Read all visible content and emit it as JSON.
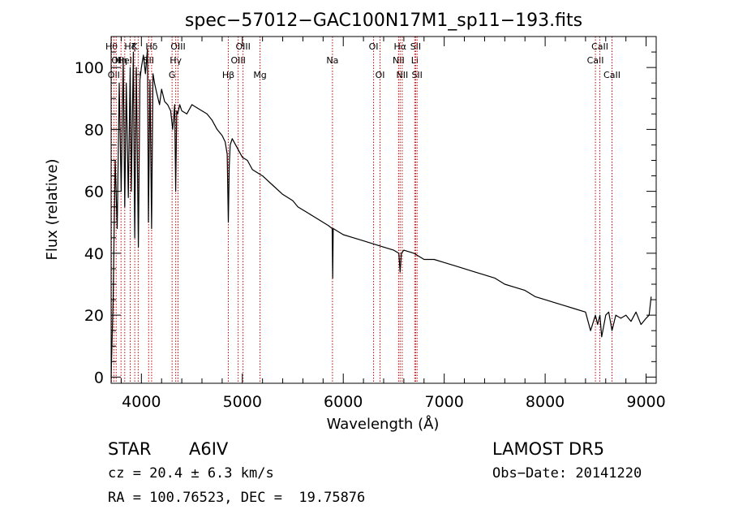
{
  "chart_data": {
    "type": "line",
    "title": "spec−57012−GAC100N17M1_sp11−193.fits",
    "xlabel": "Wavelength (Å)",
    "ylabel": "Flux (relative)",
    "xlim": [
      3700,
      9100
    ],
    "ylim": [
      -2,
      110
    ],
    "xticks": [
      4000,
      5000,
      6000,
      7000,
      8000,
      9000
    ],
    "yticks": [
      0,
      20,
      40,
      60,
      80,
      100
    ],
    "grid": false,
    "series": [
      {
        "x": [
          3700,
          3720,
          3740,
          3760,
          3780,
          3800,
          3820,
          3835,
          3850,
          3870,
          3889,
          3900,
          3920,
          3934,
          3950,
          3970,
          3985,
          4000,
          4020,
          4040,
          4060,
          4070,
          4085,
          4101,
          4115,
          4130,
          4150,
          4180,
          4200,
          4230,
          4260,
          4290,
          4310,
          4330,
          4340,
          4350,
          4360,
          4380,
          4400,
          4450,
          4500,
          4550,
          4600,
          4650,
          4700,
          4750,
          4800,
          4830,
          4850,
          4861,
          4870,
          4880,
          4900,
          4950,
          5000,
          5050,
          5100,
          5150,
          5200,
          5300,
          5400,
          5500,
          5550,
          5600,
          5700,
          5800,
          5850,
          5890,
          5895,
          5900,
          5950,
          6000,
          6100,
          6200,
          6300,
          6400,
          6500,
          6550,
          6563,
          6575,
          6600,
          6700,
          6800,
          6900,
          7000,
          7100,
          7200,
          7300,
          7400,
          7500,
          7600,
          7700,
          7800,
          7900,
          8000,
          8100,
          8200,
          8300,
          8400,
          8450,
          8498,
          8520,
          8542,
          8560,
          8600,
          8630,
          8662,
          8700,
          8750,
          8800,
          8850,
          8900,
          8950,
          9000,
          9030,
          9050
        ],
        "y": [
          0,
          25,
          70,
          48,
          95,
          60,
          103,
          55,
          95,
          58,
          100,
          60,
          105,
          45,
          100,
          42,
          96,
          100,
          104,
          98,
          106,
          50,
          96,
          48,
          98,
          95,
          92,
          88,
          93,
          89,
          88,
          86,
          80,
          88,
          60,
          86,
          85,
          88,
          86,
          85,
          88,
          87,
          86,
          85,
          83,
          80,
          78,
          76,
          72,
          50,
          68,
          75,
          77,
          74,
          71,
          70,
          67,
          66,
          65,
          62,
          59,
          57,
          55,
          54,
          52,
          50,
          49,
          48,
          32,
          48,
          47,
          46,
          45,
          44,
          43,
          42,
          41,
          40,
          34,
          40,
          41,
          40,
          38,
          38,
          37,
          36,
          35,
          34,
          33,
          32,
          30,
          29,
          28,
          26,
          25,
          24,
          23,
          22,
          21,
          15,
          20,
          17,
          20,
          13,
          20,
          21,
          15,
          20,
          19,
          20,
          18,
          21,
          17,
          19,
          20,
          26
        ]
      }
    ],
    "lines": [
      {
        "wl": 3704,
        "label": "Hθ",
        "row": 0
      },
      {
        "wl": 3727,
        "label": "OII",
        "row": 2
      },
      {
        "wl": 3750,
        "label": "OI",
        "row": 1
      },
      {
        "wl": 3798,
        "label": "Hη",
        "row": 1
      },
      {
        "wl": 3835,
        "label": "HeI",
        "row": 1
      },
      {
        "wl": 3889,
        "label": "Hζ",
        "row": 0
      },
      {
        "wl": 3934,
        "label": "K",
        "row": 0
      },
      {
        "wl": 3968,
        "label": "H",
        "row": 2
      },
      {
        "wl": 4072,
        "label": "SII",
        "row": 1
      },
      {
        "wl": 4101,
        "label": "Hδ",
        "row": 0
      },
      {
        "wl": 4304,
        "label": "G",
        "row": 2
      },
      {
        "wl": 4340,
        "label": "Hγ",
        "row": 1
      },
      {
        "wl": 4363,
        "label": "OIII",
        "row": 0
      },
      {
        "wl": 4861,
        "label": "Hβ",
        "row": 2
      },
      {
        "wl": 4959,
        "label": "OIII",
        "row": 1
      },
      {
        "wl": 5007,
        "label": "OIII",
        "row": 0
      },
      {
        "wl": 5175,
        "label": "Mg",
        "row": 2
      },
      {
        "wl": 5893,
        "label": "Na",
        "row": 1
      },
      {
        "wl": 6300,
        "label": "OI",
        "row": 0
      },
      {
        "wl": 6364,
        "label": "OI",
        "row": 2
      },
      {
        "wl": 6548,
        "label": "NII",
        "row": 1
      },
      {
        "wl": 6563,
        "label": "Hα",
        "row": 0
      },
      {
        "wl": 6584,
        "label": "NII",
        "row": 2
      },
      {
        "wl": 6708,
        "label": "Li",
        "row": 1
      },
      {
        "wl": 6717,
        "label": "SII",
        "row": 0
      },
      {
        "wl": 6731,
        "label": "SII",
        "row": 2
      },
      {
        "wl": 8498,
        "label": "CaII",
        "row": 1
      },
      {
        "wl": 8542,
        "label": "CaII",
        "row": 0
      },
      {
        "wl": 8662,
        "label": "CaII",
        "row": 2
      }
    ],
    "line_color": "#cc0000"
  },
  "info": {
    "object_class": "STAR",
    "subclass": "A6IV",
    "survey": "LAMOST DR5",
    "cz": "cz = 20.4 ± 6.3 km/s",
    "obs_date": "Obs−Date: 20141220",
    "coords": "RA = 100.76523, DEC =  19.75876"
  }
}
